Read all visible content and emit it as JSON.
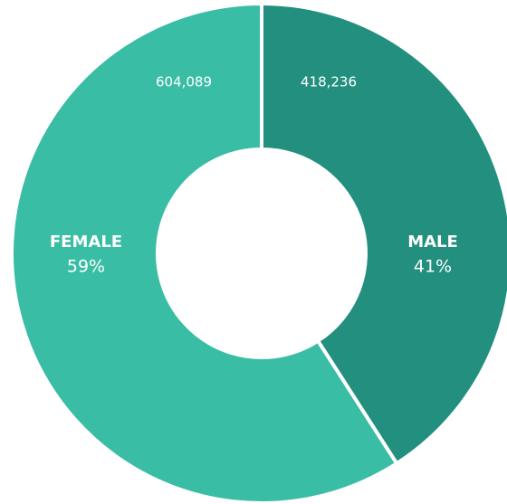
{
  "chart_data": {
    "type": "donut",
    "categories": [
      "MALE",
      "FEMALE"
    ],
    "values": [
      418236,
      604089
    ],
    "value_labels": [
      "418,236",
      "604,089"
    ],
    "percent_labels": [
      "41%",
      "59%"
    ],
    "colors": [
      "#238f7e",
      "#3abda5"
    ]
  }
}
